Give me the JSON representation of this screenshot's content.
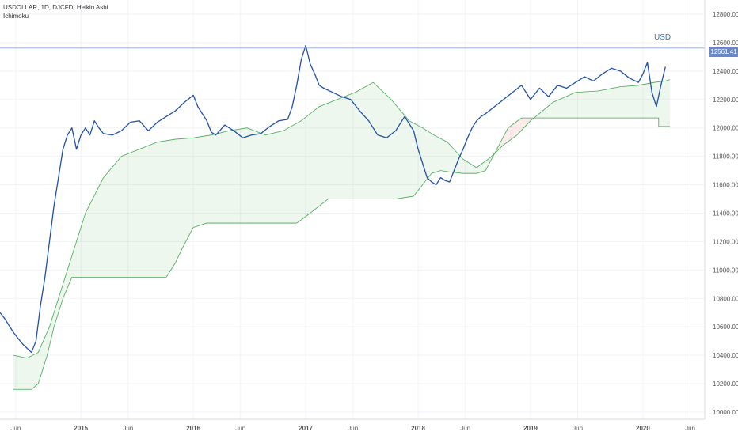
{
  "chart_data": {
    "type": "line",
    "header": "USDOLLAR, 1D, DJCFD, Heikin Ashi",
    "indicator": "Ichimoku",
    "annotation": "USD",
    "last_price_label": "12561.41",
    "last_price": 12561.41,
    "ylim": [
      9950,
      12900
    ],
    "y_ticks": [
      10000,
      10200,
      10400,
      10600,
      10800,
      11000,
      11200,
      11400,
      11600,
      11800,
      12000,
      12200,
      12400,
      12600,
      12800
    ],
    "y_tick_labels": [
      "10000.00",
      "10200.00",
      "10400.00",
      "10600.00",
      "10800.00",
      "11000.00",
      "11200.00",
      "11400.00",
      "11600.00",
      "11800.00",
      "12000.00",
      "12200.00",
      "12400.00",
      "12600.00",
      "12800.00"
    ],
    "x_range": [
      2014.28,
      2020.55
    ],
    "x_ticks": [
      {
        "label": "Jun",
        "x": 2014.42,
        "bold": false
      },
      {
        "label": "2015",
        "x": 2015.0,
        "bold": true
      },
      {
        "label": "Jun",
        "x": 2015.42,
        "bold": false
      },
      {
        "label": "2016",
        "x": 2016.0,
        "bold": true
      },
      {
        "label": "Jun",
        "x": 2016.42,
        "bold": false
      },
      {
        "label": "2017",
        "x": 2017.0,
        "bold": true
      },
      {
        "label": "Jun",
        "x": 2017.42,
        "bold": false
      },
      {
        "label": "2018",
        "x": 2018.0,
        "bold": true
      },
      {
        "label": "Jun",
        "x": 2018.42,
        "bold": false
      },
      {
        "label": "2019",
        "x": 2019.0,
        "bold": true
      },
      {
        "label": "Jun",
        "x": 2019.42,
        "bold": false
      },
      {
        "label": "2020",
        "x": 2020.0,
        "bold": true
      },
      {
        "label": "Jun",
        "x": 2020.42,
        "bold": false
      }
    ],
    "series": [
      {
        "role": "price",
        "color": "#1f4fa8",
        "x": [
          2014.28,
          2014.32,
          2014.36,
          2014.4,
          2014.44,
          2014.48,
          2014.52,
          2014.56,
          2014.6,
          2014.64,
          2014.68,
          2014.72,
          2014.76,
          2014.8,
          2014.84,
          2014.88,
          2014.92,
          2014.96,
          2015.0,
          2015.04,
          2015.08,
          2015.12,
          2015.16,
          2015.2,
          2015.28,
          2015.36,
          2015.44,
          2015.52,
          2015.6,
          2015.68,
          2015.76,
          2015.84,
          2015.92,
          2016.0,
          2016.04,
          2016.08,
          2016.12,
          2016.16,
          2016.2,
          2016.28,
          2016.36,
          2016.44,
          2016.52,
          2016.6,
          2016.68,
          2016.76,
          2016.84,
          2016.88,
          2016.92,
          2016.96,
          2017.0,
          2017.04,
          2017.08,
          2017.12,
          2017.16,
          2017.24,
          2017.32,
          2017.4,
          2017.48,
          2017.56,
          2017.64,
          2017.72,
          2017.8,
          2017.88,
          2017.96,
          2018.0,
          2018.04,
          2018.08,
          2018.12,
          2018.16,
          2018.2,
          2018.24,
          2018.28,
          2018.32,
          2018.36,
          2018.4,
          2018.44,
          2018.48,
          2018.52,
          2018.56,
          2018.6,
          2018.68,
          2018.76,
          2018.84,
          2018.92,
          2019.0,
          2019.08,
          2019.16,
          2019.24,
          2019.32,
          2019.4,
          2019.48,
          2019.56,
          2019.64,
          2019.72,
          2019.8,
          2019.88,
          2019.96,
          2020.0,
          2020.04,
          2020.08,
          2020.12,
          2020.16,
          2020.2
        ],
        "y": [
          10700,
          10660,
          10610,
          10560,
          10520,
          10480,
          10450,
          10420,
          10500,
          10750,
          10950,
          11200,
          11450,
          11650,
          11850,
          11950,
          12000,
          11850,
          11950,
          12000,
          11950,
          12050,
          12000,
          11960,
          11950,
          11980,
          12040,
          12050,
          11980,
          12040,
          12080,
          12120,
          12180,
          12230,
          12150,
          12100,
          12050,
          11970,
          11950,
          12020,
          11980,
          11930,
          11950,
          11960,
          12010,
          12050,
          12060,
          12150,
          12300,
          12480,
          12580,
          12450,
          12380,
          12300,
          12280,
          12250,
          12220,
          12200,
          12120,
          12050,
          11950,
          11930,
          11980,
          12080,
          11980,
          11850,
          11750,
          11650,
          11620,
          11600,
          11650,
          11630,
          11620,
          11700,
          11780,
          11850,
          11930,
          12000,
          12050,
          12080,
          12100,
          12150,
          12200,
          12250,
          12300,
          12200,
          12280,
          12220,
          12300,
          12280,
          12320,
          12360,
          12330,
          12380,
          12420,
          12400,
          12350,
          12320,
          12380,
          12460,
          12250,
          12150,
          12300,
          12430
        ]
      },
      {
        "role": "ichimoku-span-a",
        "color": "#45a654",
        "x": [
          2014.4,
          2014.52,
          2014.62,
          2014.72,
          2014.82,
          2014.92,
          2015.04,
          2015.2,
          2015.36,
          2015.52,
          2015.68,
          2015.84,
          2016.0,
          2016.16,
          2016.32,
          2016.48,
          2016.64,
          2016.8,
          2016.96,
          2017.12,
          2017.28,
          2017.44,
          2017.6,
          2017.76,
          2017.92,
          2018.04,
          2018.14,
          2018.26,
          2018.4,
          2018.52,
          2018.64,
          2018.76,
          2018.88,
          2019.0,
          2019.2,
          2019.4,
          2019.6,
          2019.8,
          2019.96,
          2020.1,
          2020.2,
          2020.24
        ],
        "y": [
          10400,
          10380,
          10420,
          10600,
          10850,
          11100,
          11400,
          11650,
          11800,
          11850,
          11900,
          11920,
          11930,
          11950,
          11980,
          12000,
          11950,
          11980,
          12050,
          12150,
          12200,
          12250,
          12320,
          12200,
          12050,
          12000,
          11950,
          11900,
          11780,
          11720,
          11790,
          11880,
          11950,
          12050,
          12180,
          12250,
          12260,
          12290,
          12300,
          12320,
          12330,
          12340
        ]
      },
      {
        "role": "ichimoku-span-b",
        "color": "#45a654",
        "x": [
          2014.4,
          2014.56,
          2014.62,
          2014.7,
          2014.76,
          2014.84,
          2014.92,
          2015.0,
          2015.12,
          2015.28,
          2015.44,
          2015.6,
          2015.76,
          2015.84,
          2015.9,
          2016.0,
          2016.12,
          2016.28,
          2016.44,
          2016.6,
          2016.76,
          2016.92,
          2017.04,
          2017.2,
          2017.4,
          2017.6,
          2017.8,
          2017.96,
          2018.04,
          2018.12,
          2018.2,
          2018.28,
          2018.4,
          2018.52,
          2018.6,
          2018.7,
          2018.8,
          2018.92,
          2019.1,
          2019.3,
          2019.5,
          2019.7,
          2019.9,
          2020.05,
          2020.1,
          2020.14,
          2020.14,
          2020.24
        ],
        "y": [
          10160,
          10160,
          10200,
          10400,
          10600,
          10800,
          10950,
          10950,
          10950,
          10950,
          10950,
          10950,
          10950,
          11050,
          11150,
          11300,
          11330,
          11330,
          11330,
          11330,
          11330,
          11330,
          11400,
          11500,
          11500,
          11500,
          11500,
          11520,
          11600,
          11680,
          11700,
          11690,
          11680,
          11680,
          11700,
          11850,
          12000,
          12070,
          12070,
          12070,
          12070,
          12070,
          12070,
          12070,
          12070,
          12070,
          12010,
          12010
        ]
      }
    ]
  }
}
